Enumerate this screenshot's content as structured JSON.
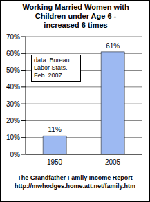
{
  "chart_data": {
    "type": "bar",
    "title": "Working Married Women with Children under Age 6 - increased 6 times",
    "categories": [
      "1950",
      "2005"
    ],
    "values": [
      11,
      61
    ],
    "value_labels": [
      "11%",
      "61%"
    ],
    "data_labels": true,
    "color": "#9db9f2",
    "ylim": [
      0,
      70
    ],
    "yticks": [
      {
        "value": 0,
        "label": "0%"
      },
      {
        "value": 10,
        "label": "10%"
      },
      {
        "value": 20,
        "label": "20%"
      },
      {
        "value": 30,
        "label": "30%"
      },
      {
        "value": 40,
        "label": "40%"
      },
      {
        "value": 50,
        "label": "50%"
      },
      {
        "value": 60,
        "label": "60%"
      },
      {
        "value": 70,
        "label": "70%"
      }
    ],
    "grid": true,
    "annotations": [
      "data: Bureau Labor Stats. Feb. 2007.",
      "The Grandfather Family Income Report",
      "http://mwhodges.home.att.net/family.htm"
    ]
  }
}
